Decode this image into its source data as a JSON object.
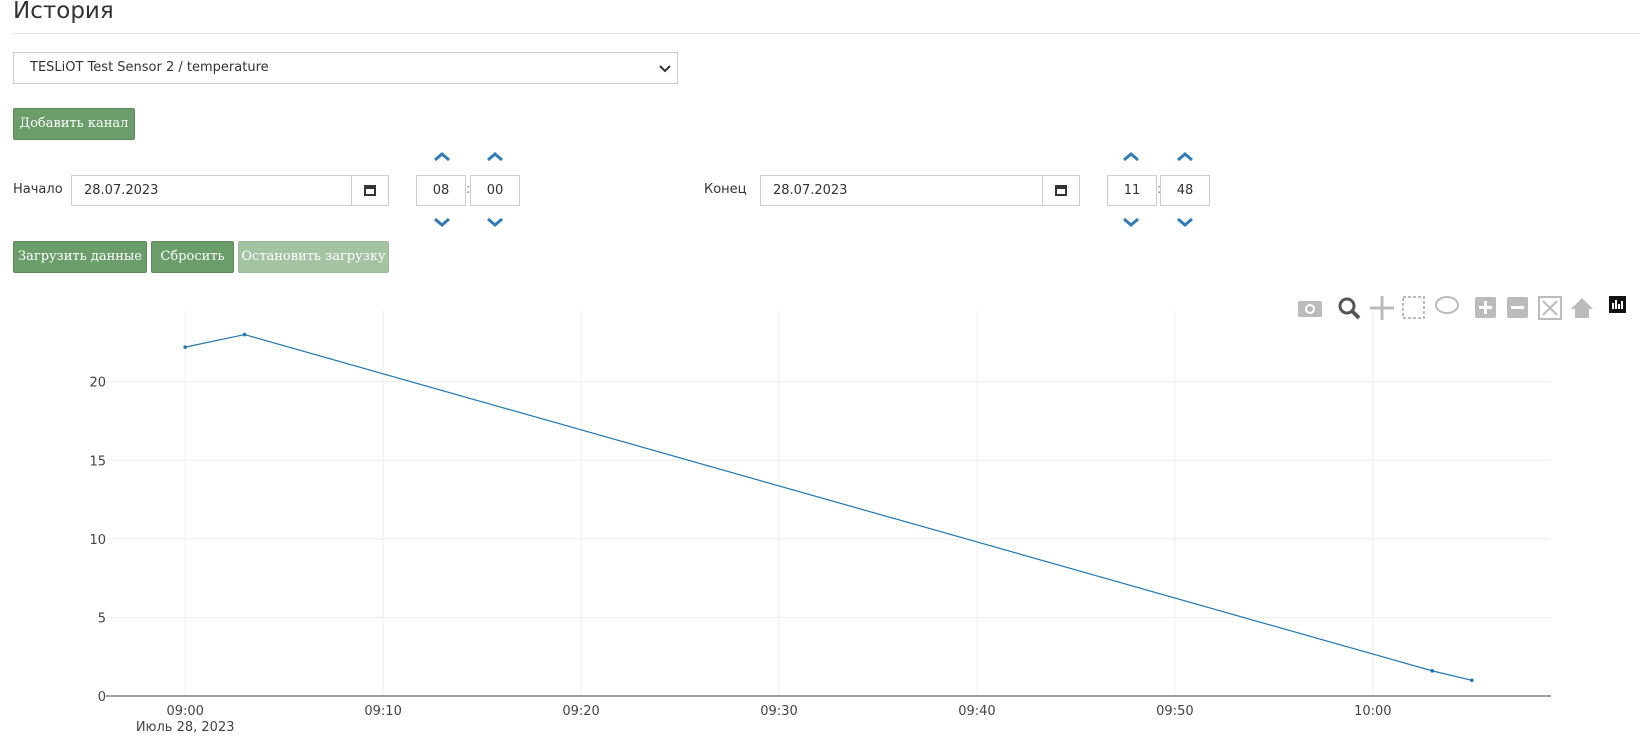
{
  "header": {
    "title": "История"
  },
  "channel_select": "TESLiOT Test Sensor 2 / temperature",
  "add_channel_button": "Добавить канал",
  "time_separator": ":",
  "start": {
    "label": "Начало",
    "date": "28.07.2023",
    "hours": "08",
    "minutes": "00"
  },
  "end": {
    "label": "Конец",
    "date": "28.07.2023",
    "hours": "11",
    "minutes": "48"
  },
  "buttons": [
    "Загрузить данные",
    "Сбросить",
    "Остановить загрузку"
  ],
  "chart_data": {
    "type": "line",
    "x": [
      "09:00",
      "09:03",
      "10:03",
      "10:05"
    ],
    "series": [
      {
        "color": "#1f77b4",
        "values": [
          22.2,
          23.0,
          1.6,
          1.0
        ]
      }
    ],
    "xlim": [
      "08:56",
      "10:09"
    ],
    "xticks": [
      "09:00",
      "09:10",
      "09:20",
      "09:30",
      "09:40",
      "09:50",
      "10:00"
    ],
    "x_date_label": "Июль 28, 2023",
    "ylim": [
      0,
      24.5
    ],
    "yticks": [
      0,
      5,
      10,
      15,
      20
    ],
    "grid": true
  }
}
